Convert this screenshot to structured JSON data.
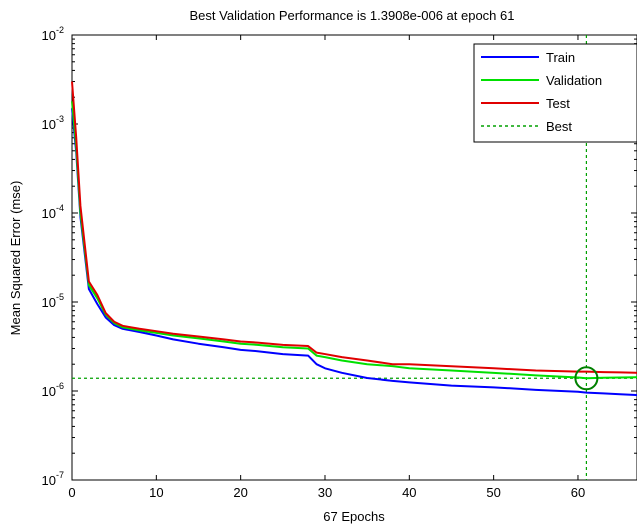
{
  "chart_data": {
    "type": "line",
    "title": "Best Validation Performance is 1.3908e-006 at epoch 61",
    "xlabel": "67 Epochs",
    "ylabel": "Mean Squared Error  (mse)",
    "xlim": [
      0,
      67
    ],
    "ylim": [
      1e-07,
      0.01
    ],
    "yscale": "log",
    "grid": false,
    "legend_position": "top-right",
    "x_ticks": [
      {
        "value": 0,
        "label": "0"
      },
      {
        "value": 10,
        "label": "10"
      },
      {
        "value": 20,
        "label": "20"
      },
      {
        "value": 30,
        "label": "30"
      },
      {
        "value": 40,
        "label": "40"
      },
      {
        "value": 50,
        "label": "50"
      },
      {
        "value": 60,
        "label": "60"
      }
    ],
    "y_ticks": [
      {
        "value": 1e-07,
        "base": "10",
        "exp": "-7"
      },
      {
        "value": 1e-06,
        "base": "10",
        "exp": "-6"
      },
      {
        "value": 1e-05,
        "base": "10",
        "exp": "-5"
      },
      {
        "value": 0.0001,
        "base": "10",
        "exp": "-4"
      },
      {
        "value": 0.001,
        "base": "10",
        "exp": "-3"
      },
      {
        "value": 0.01,
        "base": "10",
        "exp": "-2"
      }
    ],
    "series": [
      {
        "name": "Train",
        "color": "#0000ff",
        "style": "solid",
        "x": [
          0,
          0.5,
          1,
          2,
          3,
          4,
          5,
          6,
          8,
          10,
          12,
          15,
          18,
          20,
          22,
          25,
          28,
          29,
          30,
          32,
          35,
          38,
          40,
          45,
          50,
          55,
          60,
          61,
          63,
          65,
          67
        ],
        "y": [
          0.0015,
          0.00048,
          9e-05,
          1.4e-05,
          9.5e-06,
          6.7e-06,
          5.5e-06,
          5e-06,
          4.6e-06,
          4.2e-06,
          3.8e-06,
          3.4e-06,
          3.1e-06,
          2.9e-06,
          2.8e-06,
          2.6e-06,
          2.5e-06,
          2e-06,
          1.8e-06,
          1.6e-06,
          1.4e-06,
          1.3e-06,
          1.25e-06,
          1.15e-06,
          1.1e-06,
          1.03e-06,
          9.8e-07,
          9.6e-07,
          9.4e-07,
          9.2e-07,
          9e-07
        ]
      },
      {
        "name": "Validation",
        "color": "#00e000",
        "style": "solid",
        "x": [
          0,
          0.5,
          1,
          2,
          3,
          4,
          5,
          6,
          8,
          10,
          12,
          15,
          18,
          20,
          22,
          25,
          28,
          29,
          30,
          32,
          35,
          38,
          40,
          45,
          50,
          55,
          60,
          61,
          63,
          65,
          67
        ],
        "y": [
          0.0018,
          0.00055,
          0.0001,
          1.55e-05,
          1.1e-05,
          7.2e-06,
          5.8e-06,
          5.2e-06,
          4.8e-06,
          4.5e-06,
          4.2e-06,
          3.9e-06,
          3.6e-06,
          3.4e-06,
          3.3e-06,
          3.1e-06,
          3e-06,
          2.5e-06,
          2.4e-06,
          2.2e-06,
          2e-06,
          1.9e-06,
          1.8e-06,
          1.7e-06,
          1.6e-06,
          1.5e-06,
          1.42e-06,
          1.3908e-06,
          1.41e-06,
          1.42e-06,
          1.43e-06
        ]
      },
      {
        "name": "Test",
        "color": "#e00000",
        "style": "solid",
        "x": [
          0,
          0.5,
          1,
          2,
          3,
          4,
          5,
          6,
          8,
          10,
          12,
          15,
          18,
          20,
          22,
          25,
          28,
          29,
          30,
          32,
          35,
          38,
          40,
          45,
          50,
          55,
          60,
          61,
          63,
          65,
          67
        ],
        "y": [
          0.003,
          0.0007,
          0.00012,
          1.7e-05,
          1.2e-05,
          7.5e-06,
          6e-06,
          5.4e-06,
          5e-06,
          4.7e-06,
          4.4e-06,
          4.1e-06,
          3.8e-06,
          3.6e-06,
          3.5e-06,
          3.3e-06,
          3.2e-06,
          2.7e-06,
          2.6e-06,
          2.4e-06,
          2.2e-06,
          2e-06,
          2e-06,
          1.9e-06,
          1.8e-06,
          1.7e-06,
          1.65e-06,
          1.65e-06,
          1.63e-06,
          1.62e-06,
          1.6e-06
        ]
      }
    ],
    "best": {
      "label": "Best",
      "color": "#00a000",
      "style": "dashed",
      "epoch": 61,
      "value": 1.3908e-06
    }
  }
}
